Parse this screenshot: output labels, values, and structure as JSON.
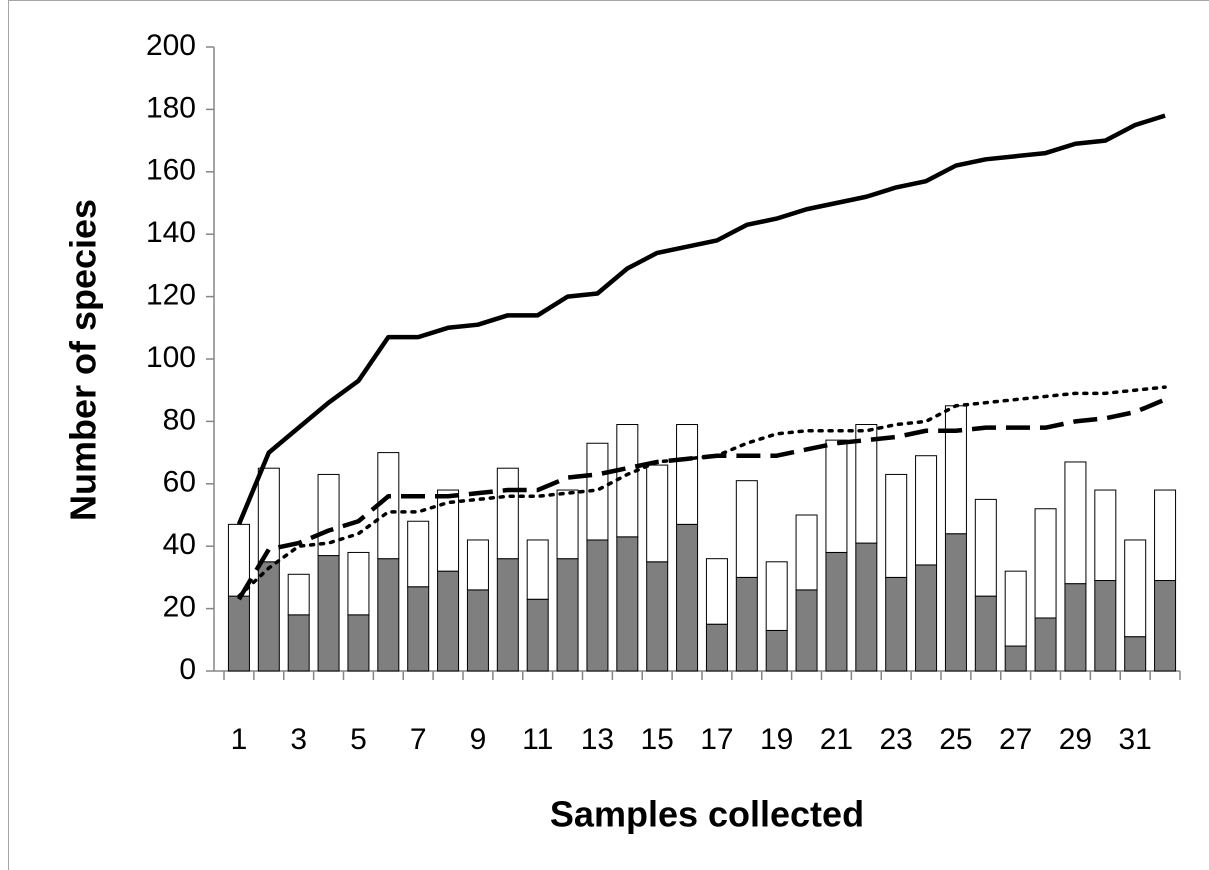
{
  "chart_data": {
    "type": "bar",
    "stacked": true,
    "x_label": "Samples collected",
    "y_label": "Number of species",
    "categories": [
      "1",
      null,
      "3",
      null,
      "5",
      null,
      "7",
      null,
      "9",
      null,
      "11",
      null,
      "13",
      null,
      "15",
      null,
      "17",
      null,
      "19",
      null,
      "21",
      null,
      "23",
      null,
      "25",
      null,
      "27",
      null,
      "29",
      null,
      "31",
      null
    ],
    "ylim": [
      0,
      200
    ],
    "yticks": [
      0,
      20,
      40,
      60,
      80,
      100,
      120,
      140,
      160,
      180,
      200
    ],
    "series": [
      {
        "type": "bar",
        "color": "#7f7f7f",
        "values": [
          24,
          35,
          18,
          37,
          18,
          36,
          27,
          32,
          26,
          36,
          23,
          36,
          42,
          43,
          35,
          47,
          15,
          30,
          13,
          26,
          38,
          41,
          30,
          34,
          44,
          24,
          8,
          17,
          28,
          29,
          11,
          29
        ]
      },
      {
        "type": "bar",
        "color": "#ffffff",
        "values": [
          23,
          30,
          13,
          26,
          20,
          34,
          21,
          26,
          16,
          29,
          19,
          22,
          31,
          36,
          31,
          32,
          21,
          31,
          22,
          24,
          36,
          38,
          33,
          35,
          41,
          31,
          24,
          35,
          39,
          29,
          31,
          29
        ]
      },
      {
        "type": "line",
        "color": "#000000",
        "style": "solid",
        "values": [
          47,
          70,
          78,
          86,
          93,
          107,
          107,
          110,
          111,
          114,
          114,
          120,
          121,
          129,
          134,
          136,
          138,
          143,
          145,
          148,
          150,
          152,
          155,
          157,
          162,
          164,
          165,
          166,
          169,
          170,
          175,
          178
        ]
      },
      {
        "type": "line",
        "color": "#000000",
        "style": "dotted",
        "values": [
          24,
          33,
          40,
          41,
          44,
          51,
          51,
          54,
          55,
          56,
          56,
          57,
          58,
          63,
          67,
          68,
          69,
          73,
          76,
          77,
          77,
          77,
          79,
          80,
          85,
          86,
          87,
          88,
          89,
          89,
          90,
          91
        ]
      },
      {
        "type": "line",
        "color": "#000000",
        "style": "dashed",
        "values": [
          23,
          39,
          41,
          45,
          48,
          56,
          56,
          56,
          57,
          58,
          58,
          62,
          63,
          65,
          67,
          68,
          69,
          69,
          69,
          71,
          73,
          74,
          75,
          77,
          77,
          78,
          78,
          78,
          80,
          81,
          83,
          87
        ]
      }
    ]
  }
}
